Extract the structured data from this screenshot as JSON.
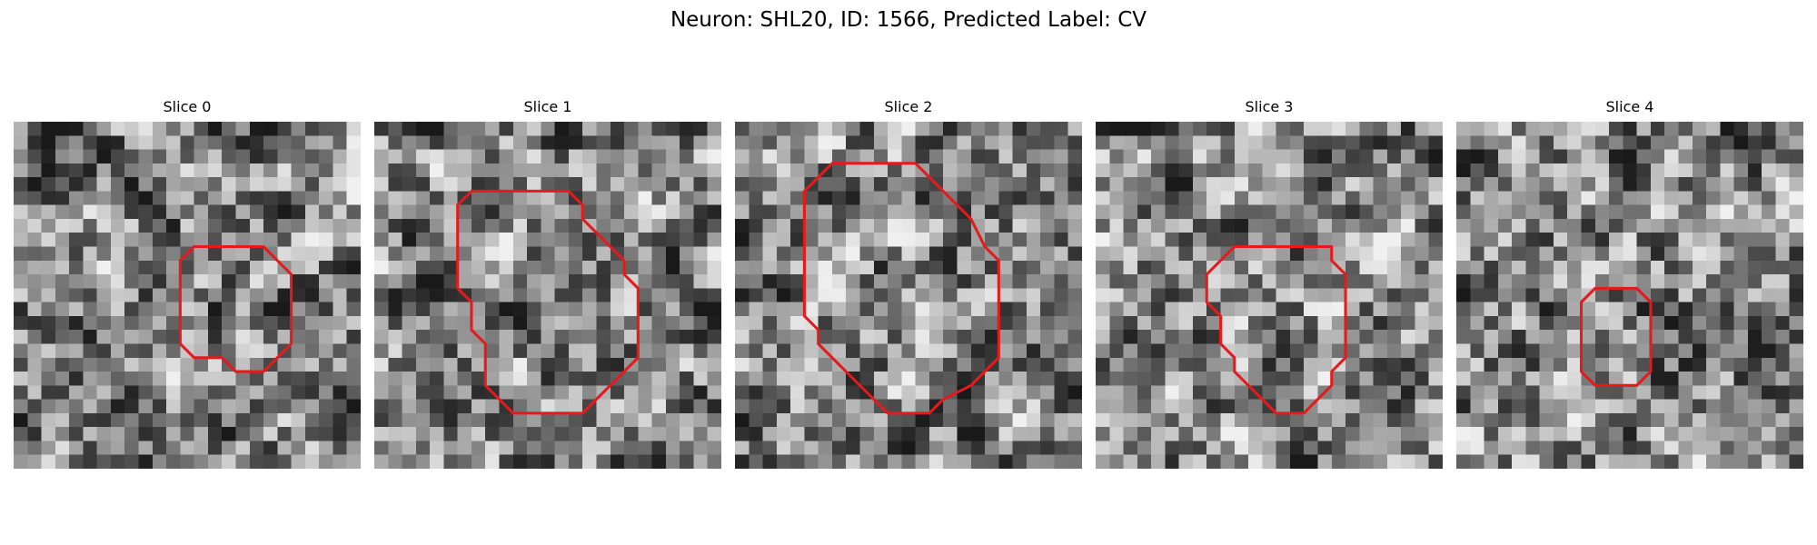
{
  "figure": {
    "title": "Neuron: SHL20, ID: 1566, Predicted Label: CV"
  },
  "style": {
    "contour_color": "#e41a1c"
  },
  "slices": [
    {
      "title": "Slice 0",
      "seed": 11,
      "contour": [
        [
          13,
          9
        ],
        [
          12,
          10
        ],
        [
          12,
          16
        ],
        [
          13,
          17
        ],
        [
          15,
          17
        ],
        [
          16,
          18
        ],
        [
          18,
          18
        ],
        [
          19,
          17
        ],
        [
          20,
          16
        ],
        [
          20,
          11
        ],
        [
          19,
          10
        ],
        [
          18,
          9
        ]
      ]
    },
    {
      "title": "Slice 1",
      "seed": 23,
      "contour": [
        [
          7,
          5
        ],
        [
          6,
          6
        ],
        [
          6,
          12
        ],
        [
          7,
          13
        ],
        [
          7,
          15
        ],
        [
          8,
          16
        ],
        [
          8,
          19
        ],
        [
          9,
          20
        ],
        [
          10,
          21
        ],
        [
          15,
          21
        ],
        [
          16,
          20
        ],
        [
          17,
          19
        ],
        [
          18,
          18
        ],
        [
          19,
          17
        ],
        [
          19,
          12
        ],
        [
          18,
          11
        ],
        [
          18,
          10
        ],
        [
          17,
          9
        ],
        [
          16,
          8
        ],
        [
          15,
          7
        ],
        [
          15,
          6
        ],
        [
          14,
          5
        ]
      ]
    },
    {
      "title": "Slice 2",
      "seed": 37,
      "contour": [
        [
          7,
          3
        ],
        [
          6,
          4
        ],
        [
          5,
          5
        ],
        [
          5,
          14
        ],
        [
          6,
          15
        ],
        [
          6,
          16
        ],
        [
          7,
          17
        ],
        [
          8,
          18
        ],
        [
          9,
          19
        ],
        [
          10,
          20
        ],
        [
          11,
          21
        ],
        [
          14,
          21
        ],
        [
          15,
          20
        ],
        [
          17,
          19
        ],
        [
          18,
          18
        ],
        [
          19,
          17
        ],
        [
          19,
          10
        ],
        [
          18,
          9
        ],
        [
          17,
          7
        ],
        [
          16,
          6
        ],
        [
          15,
          5
        ],
        [
          14,
          4
        ],
        [
          13,
          3
        ]
      ]
    },
    {
      "title": "Slice 3",
      "seed": 53,
      "contour": [
        [
          10,
          9
        ],
        [
          9,
          10
        ],
        [
          8,
          11
        ],
        [
          8,
          13
        ],
        [
          9,
          14
        ],
        [
          9,
          16
        ],
        [
          10,
          17
        ],
        [
          10,
          18
        ],
        [
          11,
          19
        ],
        [
          12,
          20
        ],
        [
          13,
          21
        ],
        [
          15,
          21
        ],
        [
          16,
          20
        ],
        [
          17,
          19
        ],
        [
          17,
          18
        ],
        [
          18,
          17
        ],
        [
          18,
          11
        ],
        [
          17,
          10
        ],
        [
          17,
          9
        ]
      ]
    },
    {
      "title": "Slice 4",
      "seed": 71,
      "contour": [
        [
          10,
          12
        ],
        [
          9,
          13
        ],
        [
          9,
          18
        ],
        [
          10,
          19
        ],
        [
          13,
          19
        ],
        [
          14,
          18
        ],
        [
          14,
          13
        ],
        [
          13,
          12
        ]
      ]
    }
  ]
}
